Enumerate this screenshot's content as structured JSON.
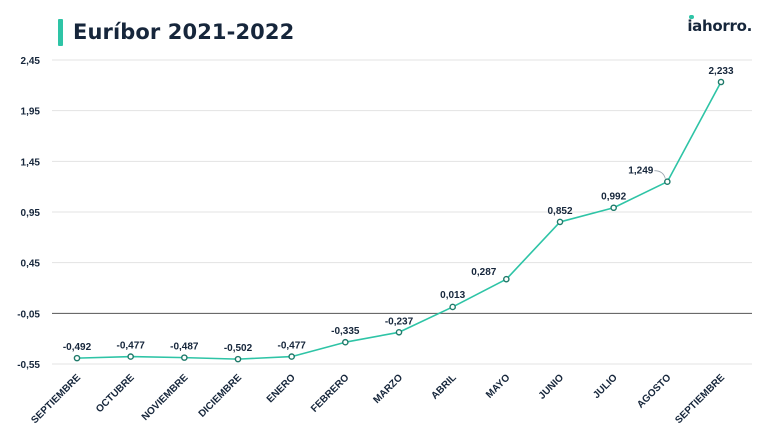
{
  "header": {
    "title": "Euríbor 2021-2022",
    "logo_text": "iahorro.",
    "accent_color": "#2ec4a6",
    "text_color": "#16263b"
  },
  "chart_data": {
    "type": "line",
    "title": "Euríbor 2021-2022",
    "xlabel": "",
    "ylabel": "",
    "categories": [
      "SEPTIEMBRE",
      "OCTUBRE",
      "NOVIEMBRE",
      "DICIEMBRE",
      "ENERO",
      "FEBRERO",
      "MARZO",
      "ABRIL",
      "MAYO",
      "JUNIO",
      "JULIO",
      "AGOSTO",
      "SEPTIEMBRE"
    ],
    "series": [
      {
        "values": [
          -0.492,
          -0.477,
          -0.487,
          -0.502,
          -0.477,
          -0.335,
          -0.237,
          0.013,
          0.287,
          0.852,
          0.992,
          1.249,
          2.233
        ],
        "labels": [
          "-0,492",
          "-0,477",
          "-0,487",
          "-0,502",
          "-0,477",
          "-0,335",
          "-0,237",
          "0,013",
          "0,287",
          "0,852",
          "0,992",
          "1,249",
          "2,233"
        ],
        "color": "#2ec4a6"
      }
    ],
    "y_ticks": [
      2.45,
      1.95,
      1.45,
      0.95,
      0.45,
      -0.05,
      -0.55
    ],
    "y_tick_labels": [
      "2,45",
      "1,95",
      "1,45",
      "0,95",
      "0,45",
      "-0,05",
      "-0,55"
    ],
    "ylim": [
      -0.55,
      2.45
    ],
    "grid": true,
    "zero_line_color": "#555555",
    "grid_color": "#e3e3e3",
    "x_label_rotation": -45
  }
}
